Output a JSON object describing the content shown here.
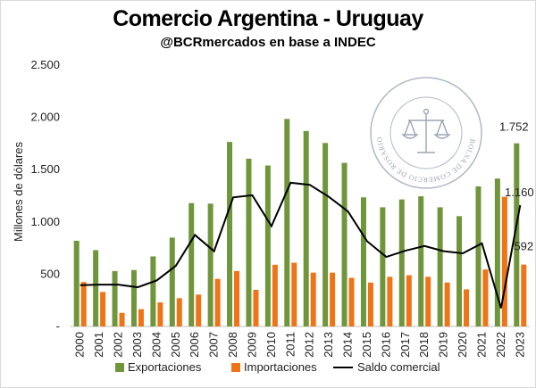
{
  "chart_data": {
    "type": "bar",
    "title": "Comercio Argentina - Uruguay",
    "subtitle": "@BCRmercados en base a INDEC",
    "ylabel": "Millones de dólares",
    "ylim": [
      0,
      2500
    ],
    "yticks": [
      {
        "value": 0,
        "label": "-"
      },
      {
        "value": 500,
        "label": "500"
      },
      {
        "value": 1000,
        "label": "1.000"
      },
      {
        "value": 1500,
        "label": "1.500"
      },
      {
        "value": 2000,
        "label": "2.000"
      },
      {
        "value": 2500,
        "label": "2.500"
      }
    ],
    "categories": [
      "2000",
      "2001",
      "2002",
      "2003",
      "2004",
      "2005",
      "2006",
      "2007",
      "2008",
      "2009",
      "2010",
      "2011",
      "2012",
      "2013",
      "2014",
      "2015",
      "2016",
      "2017",
      "2018",
      "2019",
      "2020",
      "2021",
      "2022",
      "2023"
    ],
    "series": [
      {
        "name": "Exportaciones",
        "type": "bar",
        "color": "#70963c",
        "values": [
          820,
          730,
          530,
          540,
          670,
          850,
          1180,
          1175,
          1765,
          1605,
          1540,
          1985,
          1870,
          1755,
          1565,
          1235,
          1140,
          1215,
          1245,
          1140,
          1055,
          1340,
          1415,
          1752
        ]
      },
      {
        "name": "Importaciones",
        "type": "bar",
        "color": "#ee7418",
        "values": [
          425,
          330,
          130,
          165,
          230,
          270,
          305,
          455,
          530,
          350,
          590,
          610,
          515,
          515,
          465,
          420,
          475,
          490,
          475,
          420,
          355,
          545,
          1240,
          592
        ]
      },
      {
        "name": "Saldo comercial",
        "type": "line",
        "color": "#000000",
        "values": [
          395,
          400,
          400,
          375,
          440,
          580,
          875,
          720,
          1235,
          1255,
          960,
          1375,
          1355,
          1240,
          1100,
          815,
          665,
          725,
          770,
          720,
          700,
          795,
          175,
          1160
        ]
      }
    ],
    "data_labels": [
      {
        "series": "Exportaciones",
        "category": "2023",
        "text": "1.752"
      },
      {
        "series": "Saldo comercial",
        "category": "2023",
        "text": "1.160"
      },
      {
        "series": "Importaciones",
        "category": "2023",
        "text": "592"
      }
    ],
    "legend": {
      "placement": "bottom",
      "entries": [
        "Exportaciones",
        "Importaciones",
        "Saldo comercial"
      ]
    },
    "grid": false,
    "watermark": {
      "text": "BOLSA DE COMERCIO DE ROSARIO",
      "icon": "scales-of-justice-seal"
    }
  }
}
